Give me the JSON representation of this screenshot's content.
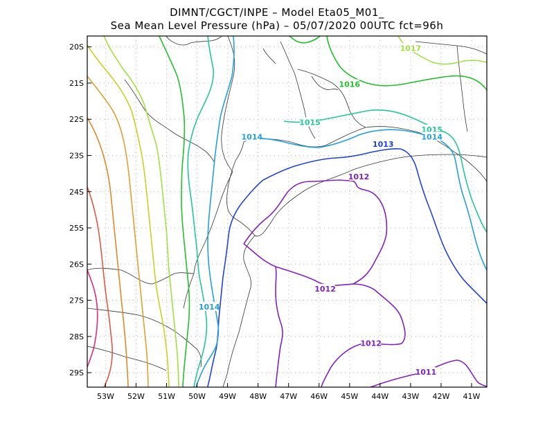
{
  "title": {
    "line1": "DIMNT/CGCT/INPE  –   Model Eta05_M01_",
    "line2": "Sea Mean Level Pressure (hPa) – 05/07/2020 00UTC fct=96h"
  },
  "axes": {
    "lat_labels": [
      "20S",
      "21S",
      "22S",
      "23S",
      "24S",
      "25S",
      "26S",
      "27S",
      "28S",
      "29S"
    ],
    "lon_labels": [
      "53W",
      "52W",
      "51W",
      "50W",
      "49W",
      "48W",
      "47W",
      "46W",
      "45W",
      "44W",
      "43W",
      "42W",
      "41W"
    ],
    "lat_range": [
      -29.4,
      -19.7
    ],
    "lon_range": [
      -53.6,
      -40.5
    ],
    "grid": "dotted"
  },
  "contour_labels": [
    {
      "text": "1017",
      "color": "#a0e040",
      "lon": -43.0,
      "lat": -20.05
    },
    {
      "text": "1016",
      "color": "#22c02a",
      "lon": -45.0,
      "lat": -21.05
    },
    {
      "text": "1015",
      "color": "#20c898",
      "lon": -46.3,
      "lat": -22.1
    },
    {
      "text": "1015",
      "color": "#20c898",
      "lon": -42.3,
      "lat": -22.3
    },
    {
      "text": "1014",
      "color": "#20a0e0",
      "lon": -48.2,
      "lat": -22.5
    },
    {
      "text": "1014",
      "color": "#20a0e0",
      "lon": -42.3,
      "lat": -22.5
    },
    {
      "text": "1014",
      "color": "#20a0e0",
      "lon": -49.6,
      "lat": -27.2
    },
    {
      "text": "1013",
      "color": "#2040e0",
      "lon": -43.9,
      "lat": -22.7
    },
    {
      "text": "1012",
      "color": "#8020c8",
      "lon": -44.7,
      "lat": -23.6
    },
    {
      "text": "1012",
      "color": "#8020c8",
      "lon": -45.8,
      "lat": -26.7
    },
    {
      "text": "1012",
      "color": "#8020c8",
      "lon": -44.3,
      "lat": -28.2
    },
    {
      "text": "1011",
      "color": "#8020c8",
      "lon": -42.5,
      "lat": -29.0
    }
  ]
}
